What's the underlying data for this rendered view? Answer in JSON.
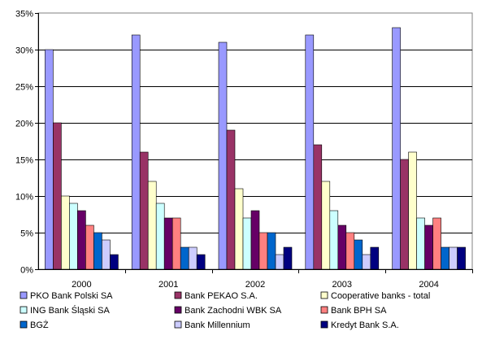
{
  "chart_data": {
    "type": "bar",
    "title": "",
    "xlabel": "",
    "ylabel": "",
    "categories": [
      "2000",
      "2001",
      "2002",
      "2003",
      "2004"
    ],
    "ylim": [
      0,
      35
    ],
    "yticks": [
      "0%",
      "5%",
      "10%",
      "15%",
      "20%",
      "25%",
      "30%",
      "35%"
    ],
    "grid": "horizontal",
    "legend_position": "bottom",
    "series": [
      {
        "name": "PKO Bank Polski SA",
        "color": "#9999ff",
        "values": [
          30,
          32,
          31,
          32,
          33
        ]
      },
      {
        "name": "Bank PEKAO S.A.",
        "color": "#993366",
        "values": [
          20,
          16,
          19,
          17,
          15
        ]
      },
      {
        "name": "Cooperative banks - total",
        "color": "#ffffcc",
        "values": [
          10,
          12,
          11,
          12,
          16
        ]
      },
      {
        "name": "ING Bank Śląski SA",
        "color": "#ccffff",
        "values": [
          9,
          9,
          7,
          8,
          7
        ]
      },
      {
        "name": "Bank Zachodni WBK SA",
        "color": "#660066",
        "values": [
          8,
          7,
          8,
          6,
          6
        ]
      },
      {
        "name": "Bank BPH SA",
        "color": "#ff8080",
        "values": [
          6,
          7,
          5,
          5,
          7
        ]
      },
      {
        "name": "BGŻ",
        "color": "#0066cc",
        "values": [
          5,
          3,
          5,
          4,
          3
        ]
      },
      {
        "name": "Bank Millennium",
        "color": "#ccccff",
        "values": [
          4,
          3,
          2,
          2,
          3
        ]
      },
      {
        "name": "Kredyt Bank S.A.",
        "color": "#000080",
        "values": [
          2,
          2,
          3,
          3,
          3
        ]
      }
    ]
  }
}
